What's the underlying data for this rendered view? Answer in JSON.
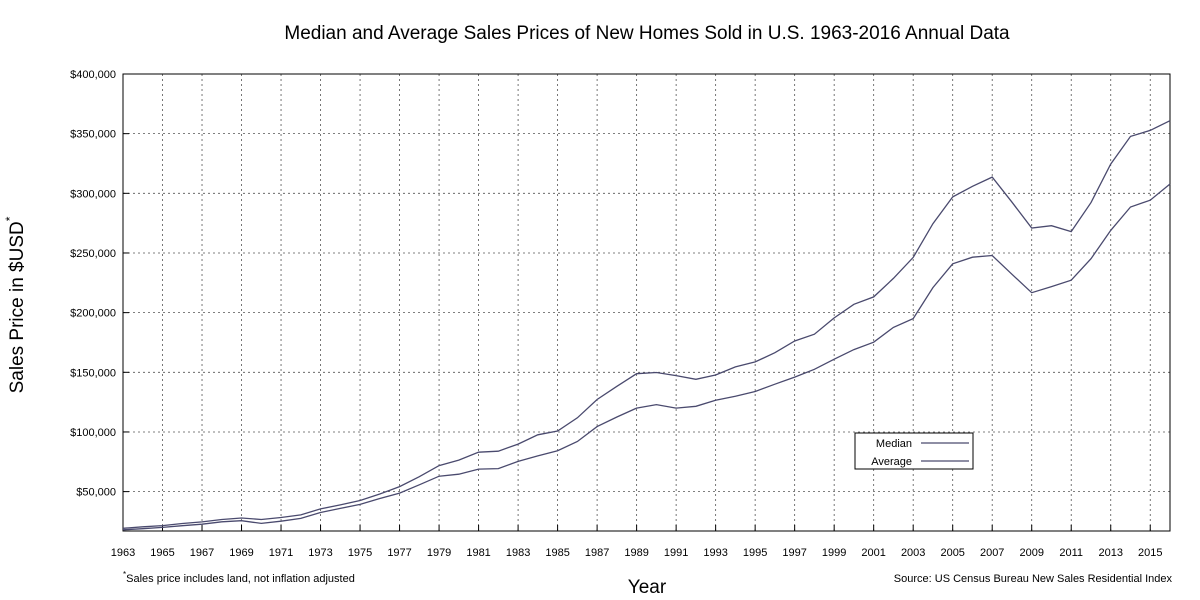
{
  "chart_data": {
    "type": "line",
    "title": "Median and Average Sales Prices of New Homes Sold in U.S. 1963-2016 Annual Data",
    "xlabel": "Year",
    "ylabel": "Sales Price in $USD",
    "ylabel_superscript": "*",
    "xlim": [
      1963,
      2016
    ],
    "ylim": [
      17000,
      400000
    ],
    "y_ticks": [
      50000,
      100000,
      150000,
      200000,
      250000,
      300000,
      350000,
      400000
    ],
    "y_tick_labels": [
      "$50,000",
      "$100,000",
      "$150,000",
      "$200,000",
      "$250,000",
      "$300,000",
      "$350,000",
      "$400,000"
    ],
    "x_ticks": [
      1963,
      1965,
      1967,
      1969,
      1971,
      1973,
      1975,
      1977,
      1979,
      1981,
      1983,
      1985,
      1987,
      1989,
      1991,
      1993,
      1995,
      1997,
      1999,
      2001,
      2003,
      2005,
      2007,
      2009,
      2011,
      2013,
      2015
    ],
    "x_tick_labels": [
      "1963",
      "1965",
      "1967",
      "1969",
      "1971",
      "1973",
      "1975",
      "1977",
      "1979",
      "1981",
      "1983",
      "1985",
      "1987",
      "1989",
      "1991",
      "1993",
      "1995",
      "1997",
      "1999",
      "2001",
      "2003",
      "2005",
      "2007",
      "2009",
      "2011",
      "2013",
      "2015"
    ],
    "grid": true,
    "legend_position": "bottom-right",
    "x": [
      1963,
      1964,
      1965,
      1966,
      1967,
      1968,
      1969,
      1970,
      1971,
      1972,
      1973,
      1974,
      1975,
      1976,
      1977,
      1978,
      1979,
      1980,
      1981,
      1982,
      1983,
      1984,
      1985,
      1986,
      1987,
      1988,
      1989,
      1990,
      1991,
      1992,
      1993,
      1994,
      1995,
      1996,
      1997,
      1998,
      1999,
      2000,
      2001,
      2002,
      2003,
      2004,
      2005,
      2006,
      2007,
      2008,
      2009,
      2010,
      2011,
      2012,
      2013,
      2014,
      2015,
      2016
    ],
    "series": [
      {
        "name": "Median",
        "color": "#4a4a6e",
        "values": [
          18000,
          18900,
          20000,
          21400,
          22700,
          24700,
          25600,
          23400,
          25200,
          27600,
          32500,
          35900,
          39300,
          44200,
          48800,
          55700,
          62900,
          64600,
          68900,
          69300,
          75300,
          79900,
          84300,
          92000,
          104500,
          112500,
          120000,
          122900,
          120000,
          121500,
          126500,
          130000,
          133900,
          140000,
          146000,
          152500,
          161000,
          169000,
          175200,
          187600,
          195000,
          221000,
          240900,
          246500,
          247900,
          232100,
          216700,
          221800,
          227200,
          245200,
          268900,
          288500,
          294200,
          307800
        ]
      },
      {
        "name": "Average",
        "color": "#4a4a6e",
        "values": [
          19300,
          20500,
          21500,
          23300,
          24600,
          26600,
          27900,
          26600,
          28300,
          30500,
          35500,
          38900,
          42600,
          48000,
          54200,
          62500,
          71800,
          76400,
          83000,
          83900,
          89800,
          97600,
          100800,
          111900,
          127200,
          138300,
          148800,
          149800,
          147200,
          144100,
          147700,
          154500,
          158700,
          166400,
          176200,
          181900,
          195600,
          207000,
          213200,
          228700,
          246300,
          274500,
          297000,
          305900,
          313600,
          292600,
          270900,
          272900,
          267900,
          292200,
          324500,
          347700,
          352700,
          360900
        ]
      }
    ],
    "footnote_marker": "*",
    "footnote": "Sales price includes land, not inflation adjusted",
    "source": "Source: US Census Bureau New Sales Residential Index"
  }
}
